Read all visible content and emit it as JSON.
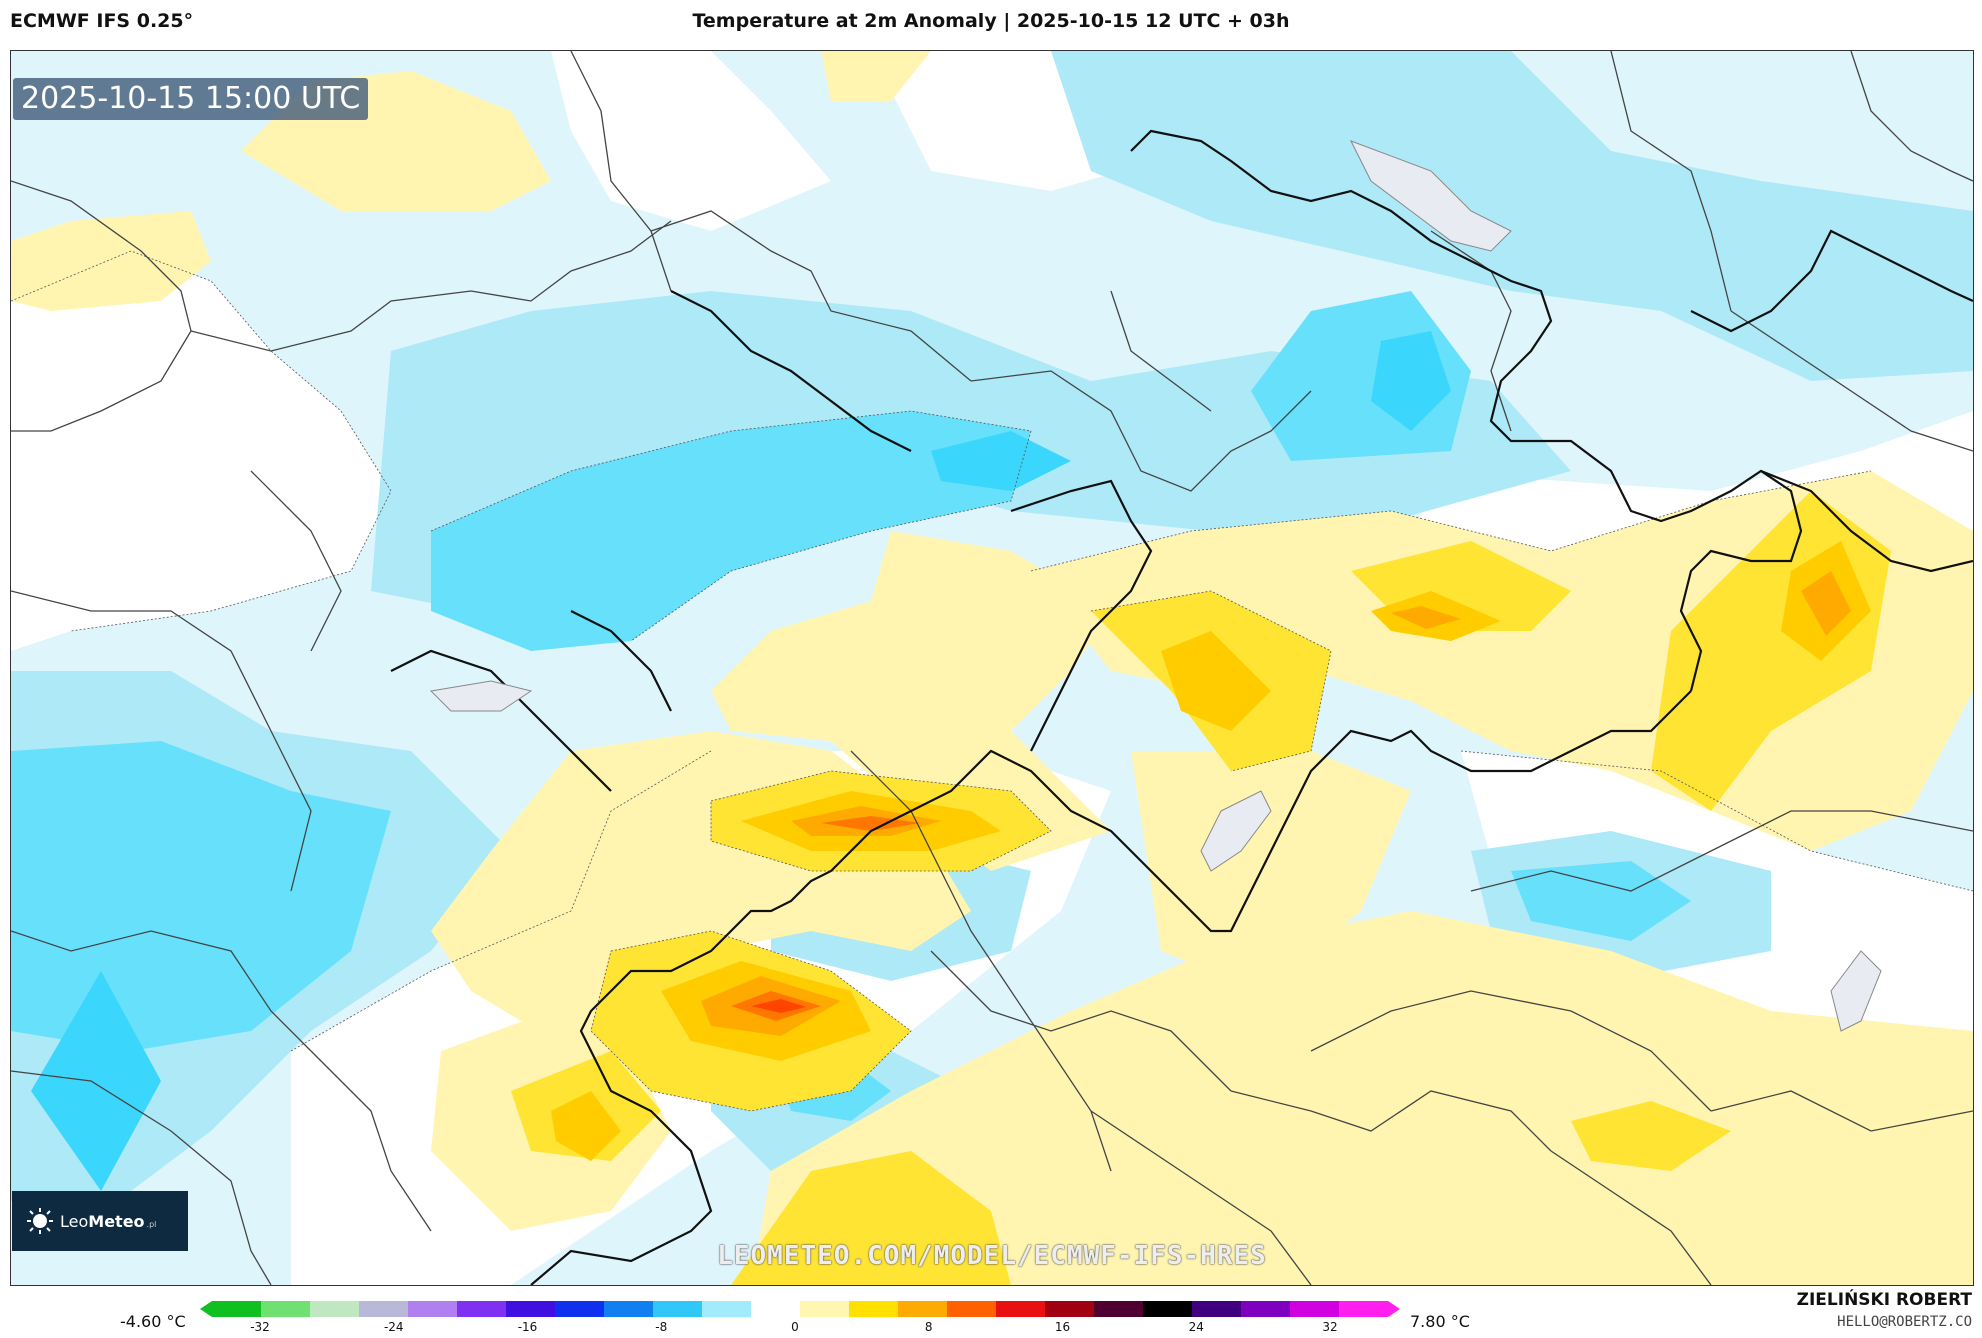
{
  "header": {
    "model": "ECMWF IFS 0.25°",
    "title": "Temperature at 2m Anomaly | 2025-10-15 12 UTC + 03h"
  },
  "map": {
    "valid_time": "2025-10-15 15:00 UTC",
    "watermark": "LEOMETEO.COM/MODEL/ECMWF-IFS-HRES",
    "logo": {
      "name_part1": "Leo",
      "name_part2": "Meteo",
      "suffix": ".pl"
    },
    "colors": {
      "light_blue": "#dff5fc",
      "blue_1": "#aee9f8",
      "blue_2": "#66e0fb",
      "blue_3": "#3ad6fb",
      "pale_yellow": "#fff5b0",
      "yellow_1": "#ffe433",
      "yellow_2": "#ffcc00",
      "orange_1": "#ffaa00",
      "orange_2": "#ff7700",
      "red_orange": "#ff4400"
    }
  },
  "legend": {
    "min_label": "-4.60 °C",
    "max_label": "7.80 °C",
    "ticks": [
      "-32",
      "-24",
      "-16",
      "-8",
      "0",
      "8",
      "16",
      "24",
      "32"
    ],
    "stops": [
      "#10c020",
      "#70e070",
      "#c0e8c0",
      "#b8b8d8",
      "#b080f0",
      "#8030f0",
      "#4010e0",
      "#1030f0",
      "#1080f0",
      "#30c8f8",
      "#a0ecfc",
      "#ffffff",
      "#fff6b0",
      "#ffe000",
      "#ffaa00",
      "#ff6000",
      "#e81010",
      "#a00010",
      "#500030",
      "#000000",
      "#400080",
      "#8000c0",
      "#d000e0",
      "#ff20f0"
    ]
  },
  "credits": {
    "author": "ZIELIŃSKI ROBERT",
    "email": "HELLO@ROBERTZ.CO"
  }
}
